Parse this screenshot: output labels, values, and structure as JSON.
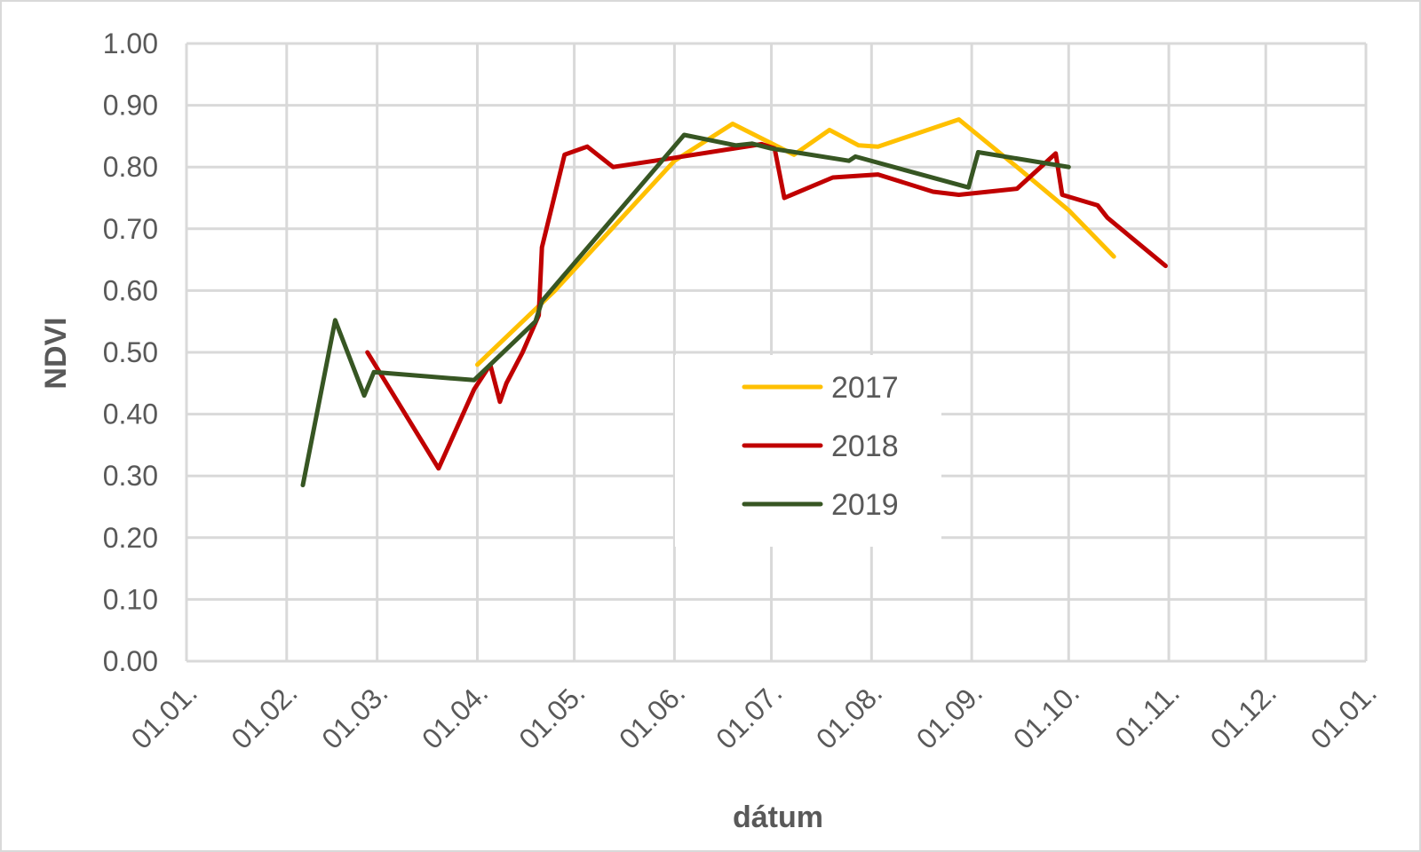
{
  "chart_data": {
    "type": "line",
    "title": "",
    "xlabel": "dátum",
    "ylabel": "NDVI",
    "ylim": [
      0,
      1
    ],
    "y_ticks": [
      "0.00",
      "0.10",
      "0.20",
      "0.30",
      "0.40",
      "0.50",
      "0.60",
      "0.70",
      "0.80",
      "0.90",
      "1.00"
    ],
    "x_ticks": [
      "01.01.",
      "01.02.",
      "01.03.",
      "01.04.",
      "01.05.",
      "01.06.",
      "01.07.",
      "01.08.",
      "01.09.",
      "01.10.",
      "01.11.",
      "01.12.",
      "01.01."
    ],
    "grid": true,
    "legend_position": "center",
    "colors": {
      "2017": "#FFC000",
      "2018": "#C00000",
      "2019": "#375623",
      "grid": "#d9d9d9",
      "text": "#595959"
    },
    "series": [
      {
        "name": "2017",
        "points": [
          [
            "01.04.",
            0.48
          ],
          [
            "25.04.",
            0.6
          ],
          [
            "01.06.",
            0.81
          ],
          [
            "19.06.",
            0.87
          ],
          [
            "08.07.",
            0.82
          ],
          [
            "19.07.",
            0.86
          ],
          [
            "28.07.",
            0.835
          ],
          [
            "03.08.",
            0.833
          ],
          [
            "28.08.",
            0.877
          ],
          [
            "15.09.",
            0.8
          ],
          [
            "01.10.",
            0.73
          ],
          [
            "15.10.",
            0.655
          ]
        ]
      },
      {
        "name": "2018",
        "points": [
          [
            "26.02.",
            0.5
          ],
          [
            "20.03.",
            0.312
          ],
          [
            "31.03.",
            0.44
          ],
          [
            "05.04.",
            0.48
          ],
          [
            "08.04.",
            0.42
          ],
          [
            "10.04.",
            0.45
          ],
          [
            "15.04.",
            0.5
          ],
          [
            "20.04.",
            0.56
          ],
          [
            "21.04.",
            0.67
          ],
          [
            "28.04.",
            0.82
          ],
          [
            "05.05.",
            0.833
          ],
          [
            "13.05.",
            0.8
          ],
          [
            "01.06.",
            0.815
          ],
          [
            "28.06.",
            0.837
          ],
          [
            "02.07.",
            0.83
          ],
          [
            "05.07.",
            0.75
          ],
          [
            "20.07.",
            0.783
          ],
          [
            "03.08.",
            0.788
          ],
          [
            "20.08.",
            0.76
          ],
          [
            "28.08.",
            0.755
          ],
          [
            "15.09.",
            0.765
          ],
          [
            "27.09.",
            0.822
          ],
          [
            "29.09.",
            0.755
          ],
          [
            "10.10.",
            0.738
          ],
          [
            "13.10.",
            0.718
          ],
          [
            "31.10.",
            0.64
          ]
        ]
      },
      {
        "name": "2019",
        "points": [
          [
            "06.02.",
            0.285
          ],
          [
            "16.02.",
            0.552
          ],
          [
            "25.02.",
            0.43
          ],
          [
            "28.02.",
            0.468
          ],
          [
            "31.03.",
            0.455
          ],
          [
            "15.04.",
            0.53
          ],
          [
            "19.04.",
            0.55
          ],
          [
            "21.04.",
            0.583
          ],
          [
            "04.06.",
            0.852
          ],
          [
            "20.06.",
            0.835
          ],
          [
            "25.06.",
            0.838
          ],
          [
            "01.07.",
            0.83
          ],
          [
            "25.07.",
            0.81
          ],
          [
            "27.07.",
            0.817
          ],
          [
            "31.08.",
            0.767
          ],
          [
            "03.09.",
            0.824
          ],
          [
            "01.10.",
            0.8
          ]
        ]
      }
    ]
  }
}
